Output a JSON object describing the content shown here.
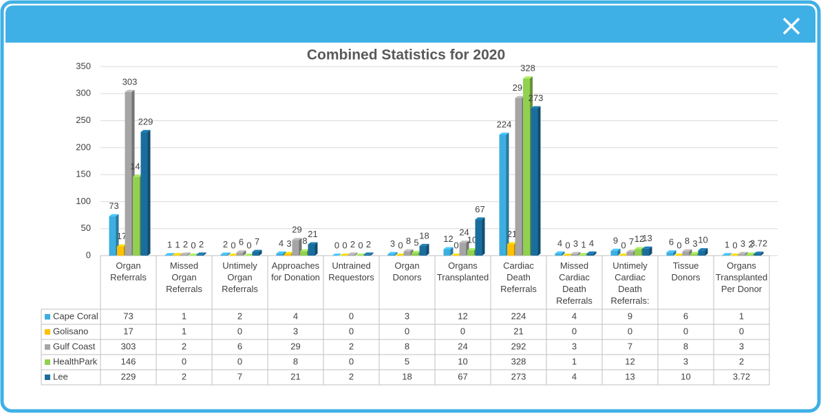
{
  "chart_data": {
    "type": "bar",
    "title": "Combined Statistics  for 2020",
    "categories": [
      "Organ Referrals",
      "Missed Organ Referrals",
      "Untimely Organ Referrals",
      "Approaches for Donation",
      "Untrained Requestors",
      "Organ Donors",
      "Organs Transplanted",
      "Cardiac Death Referrals",
      "Missed Cardiac Death Referrals",
      "Untimely Cardiac Death Referrals:",
      "Tissue Donors",
      "Organs Transplanted Per Donor"
    ],
    "series": [
      {
        "name": "Cape Coral",
        "color": "#3daee0",
        "values": [
          73,
          1,
          2,
          4,
          0,
          3,
          12,
          224,
          4,
          9,
          6,
          1
        ]
      },
      {
        "name": "Golisano",
        "color": "#ffc000",
        "values": [
          17,
          1,
          0,
          3,
          0,
          0,
          0,
          21,
          0,
          0,
          0,
          0
        ]
      },
      {
        "name": "Gulf Coast",
        "color": "#a5a5a5",
        "values": [
          303,
          2,
          6,
          29,
          2,
          8,
          24,
          292,
          3,
          7,
          8,
          3
        ]
      },
      {
        "name": "HealthPark",
        "color": "#92d050",
        "values": [
          146,
          0,
          0,
          8,
          0,
          5,
          10,
          328,
          1,
          12,
          3,
          2
        ]
      },
      {
        "name": "Lee",
        "color": "#1a6e9e",
        "values": [
          229,
          2,
          7,
          21,
          2,
          18,
          67,
          273,
          4,
          13,
          10,
          3.72
        ]
      }
    ],
    "ylim": [
      0,
      350
    ],
    "yticks": [
      0,
      50,
      100,
      150,
      200,
      250,
      300,
      350
    ],
    "grid": true
  }
}
